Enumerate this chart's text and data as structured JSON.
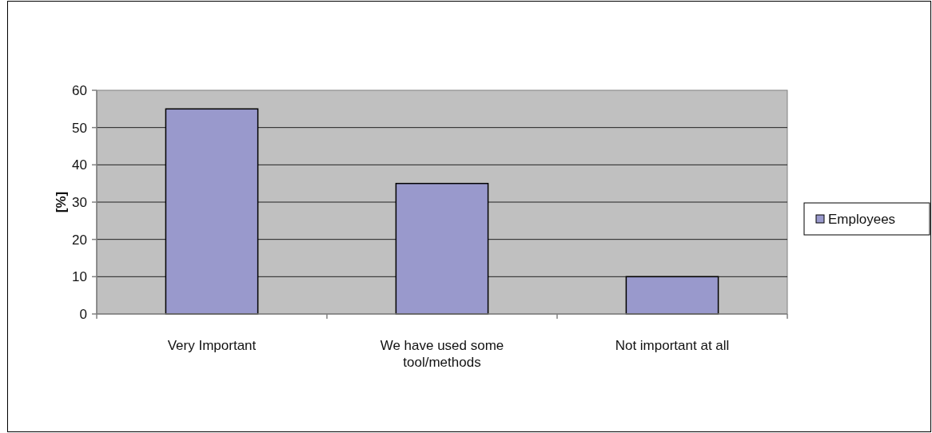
{
  "chart_data": {
    "type": "bar",
    "ylabel": "[%]",
    "categories": [
      "Very Important",
      "We have used some tool/methods",
      "Not important at all"
    ],
    "series": [
      {
        "name": "Employees",
        "color": "#9999cc",
        "values": [
          55,
          35,
          10
        ]
      }
    ],
    "ylim": [
      0,
      60
    ],
    "yticks": [
      0,
      10,
      20,
      30,
      40,
      50,
      60
    ],
    "grid": "y",
    "legend": "right"
  }
}
